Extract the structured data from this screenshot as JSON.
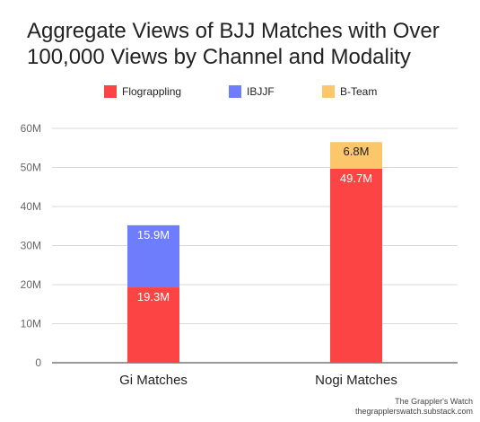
{
  "chart_data": {
    "type": "bar",
    "stacked": true,
    "title_lines": [
      "Aggregate Views of BJJ Matches with Over",
      "100,000 Views by Channel and Modality"
    ],
    "categories": [
      "Gi Matches",
      "Nogi Matches"
    ],
    "series": [
      {
        "name": "Flograppling",
        "color": "#fc4444",
        "values": [
          19.3,
          49.7
        ],
        "labels": [
          "19.3M",
          "49.7M"
        ]
      },
      {
        "name": "IBJJF",
        "color": "#6d7dfc",
        "values": [
          15.9,
          0
        ],
        "labels": [
          "15.9M",
          ""
        ]
      },
      {
        "name": "B-Team",
        "color": "#fcc76b",
        "values": [
          0,
          6.8
        ],
        "labels": [
          "",
          "6.8M"
        ]
      }
    ],
    "ylim": [
      0,
      60
    ],
    "yticks": [
      0,
      10,
      20,
      30,
      40,
      50,
      60
    ],
    "ytick_labels": [
      "0",
      "10M",
      "20M",
      "30M",
      "40M",
      "50M",
      "60M"
    ],
    "grid": true,
    "legend_position": "top"
  },
  "credit": {
    "line1": "The Grappler's Watch",
    "line2": "thegrapplerswatch.substack.com"
  }
}
